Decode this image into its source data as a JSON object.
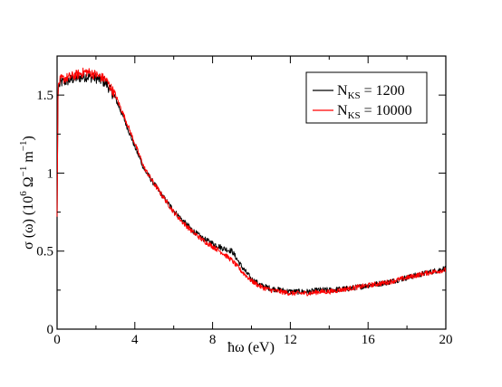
{
  "chart_data": {
    "type": "line",
    "xlabel": {
      "prefix": "ħω",
      "unit": "(eV)"
    },
    "ylabel": {
      "symbol": "σ (ω)",
      "open": "(10",
      "exp1": "6",
      "mid": " Ω",
      "exp2": "−1",
      "unit_m": " m",
      "exp3": "−1",
      "close": ")"
    },
    "xlim": [
      0,
      20
    ],
    "ylim": [
      0,
      1.75
    ],
    "xticks": [
      0,
      4,
      8,
      12,
      16,
      20
    ],
    "xtick_labels": [
      "0",
      "4",
      "8",
      "12",
      "16",
      "20"
    ],
    "yticks": [
      0,
      0.5,
      1,
      1.5
    ],
    "ytick_labels": [
      "0",
      "0.5",
      "1",
      "1.5"
    ],
    "grid": false,
    "legend_position": "top-right",
    "series": [
      {
        "legend": {
          "main": "N",
          "sub": "KS",
          "rest": " = 1200"
        },
        "color": "#000000",
        "x": [
          0,
          0.05,
          0.2,
          0.5,
          1.0,
          1.5,
          2.0,
          2.5,
          3.0,
          3.5,
          4.0,
          4.5,
          5.0,
          5.5,
          6.0,
          6.5,
          7.0,
          7.5,
          8.0,
          8.5,
          9.0,
          9.5,
          10.0,
          10.5,
          11.0,
          11.5,
          12.0,
          12.5,
          13.0,
          13.5,
          14.0,
          15.0,
          16.0,
          17.0,
          18.0,
          19.0,
          20.0
        ],
        "y": [
          0.72,
          1.55,
          1.58,
          1.59,
          1.61,
          1.62,
          1.61,
          1.58,
          1.48,
          1.33,
          1.17,
          1.02,
          0.93,
          0.84,
          0.76,
          0.69,
          0.63,
          0.58,
          0.55,
          0.52,
          0.5,
          0.4,
          0.32,
          0.28,
          0.26,
          0.25,
          0.24,
          0.24,
          0.24,
          0.25,
          0.25,
          0.26,
          0.28,
          0.3,
          0.33,
          0.36,
          0.39
        ]
      },
      {
        "legend": {
          "main": "N",
          "sub": "KS",
          "rest": " = 10000"
        },
        "color": "#ff0000",
        "x": [
          0,
          0.05,
          0.2,
          0.5,
          1.0,
          1.5,
          2.0,
          2.5,
          3.0,
          3.5,
          4.0,
          4.5,
          5.0,
          5.5,
          6.0,
          6.5,
          7.0,
          7.5,
          8.0,
          8.5,
          9.0,
          9.5,
          10.0,
          10.5,
          11.0,
          11.5,
          12.0,
          12.5,
          13.0,
          13.5,
          14.0,
          15.0,
          16.0,
          17.0,
          18.0,
          19.0,
          20.0
        ],
        "y": [
          0.72,
          1.57,
          1.6,
          1.61,
          1.63,
          1.65,
          1.63,
          1.6,
          1.5,
          1.35,
          1.19,
          1.03,
          0.93,
          0.84,
          0.75,
          0.68,
          0.62,
          0.57,
          0.53,
          0.49,
          0.44,
          0.37,
          0.31,
          0.27,
          0.25,
          0.24,
          0.23,
          0.23,
          0.23,
          0.24,
          0.24,
          0.26,
          0.28,
          0.3,
          0.33,
          0.36,
          0.38
        ]
      }
    ]
  }
}
